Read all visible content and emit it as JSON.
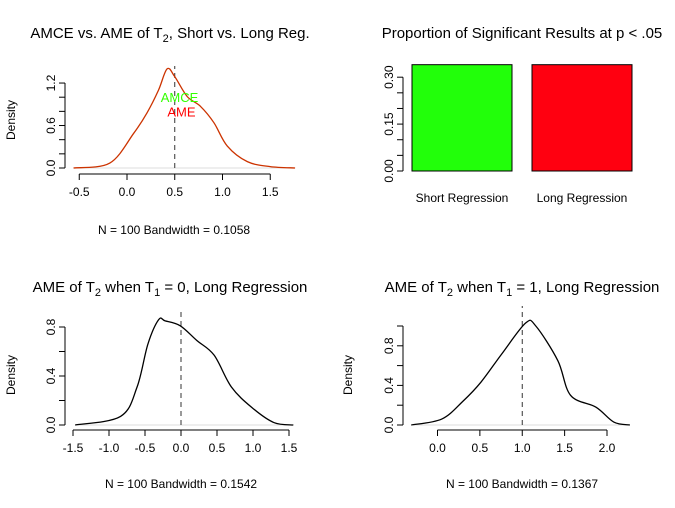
{
  "chart_data": [
    {
      "type": "line",
      "title": {
        "pre": "AMCE vs. AME of T",
        "sub": "2",
        "post": ", Short vs. Long Reg."
      },
      "xlabel": "N = 100   Bandwidth = 0.1058",
      "ylabel": "Density",
      "xticks": [
        -0.5,
        0.0,
        0.5,
        1.0,
        1.5
      ],
      "xtick_labels": [
        "-0.5",
        "0.0",
        "0.5",
        "1.0",
        "1.5"
      ],
      "yticks": [
        0,
        0.2,
        0.4,
        0.6,
        0.8,
        1.0,
        1.2
      ],
      "ytick_labels": [
        "0.0",
        "",
        "",
        "0.6",
        "",
        "",
        "1.2"
      ],
      "ref_line_x": 0.5,
      "curve_color": "#cc3300",
      "annotations": [
        {
          "text": "AMCE",
          "x": 0.55,
          "y": 1.0,
          "color": "#33ff00"
        },
        {
          "text": "AME",
          "x": 0.57,
          "y": 0.8,
          "color": "#ff0000"
        }
      ],
      "x": [
        -0.56,
        -0.18,
        0.07,
        0.21,
        0.33,
        0.42,
        0.5,
        0.63,
        0.77,
        0.91,
        1.05,
        1.26,
        1.5,
        1.76
      ],
      "y": [
        0,
        0.07,
        0.49,
        0.78,
        1.1,
        1.4,
        1.29,
        1.01,
        0.87,
        0.64,
        0.31,
        0.09,
        0.02,
        0
      ]
    },
    {
      "type": "bar",
      "title": {
        "pre": "Proportion of Significant Results at p < .05",
        "sub": "",
        "post": ""
      },
      "categories": [
        "Short Regression",
        "Long Regression"
      ],
      "values": [
        0.34,
        0.34
      ],
      "colors": [
        "#22ff0a",
        "#ff0010"
      ],
      "yticks": [
        0,
        0.05,
        0.1,
        0.15,
        0.2,
        0.25,
        0.3
      ],
      "ytick_labels": [
        "0.00",
        "",
        "",
        "0.15",
        "",
        "",
        "0.30"
      ]
    },
    {
      "type": "line",
      "title": {
        "pre": "AME of T",
        "sub": "2",
        "mid": " when T",
        "sub2": "1",
        "post": " = 0, Long Regression"
      },
      "xlabel": "N = 100   Bandwidth = 0.1542",
      "ylabel": "Density",
      "xticks": [
        -1.5,
        -1.0,
        -0.5,
        0.0,
        0.5,
        1.0,
        1.5
      ],
      "xtick_labels": [
        "-1.5",
        "-1.0",
        "-0.5",
        "0.0",
        "0.5",
        "1.0",
        "1.5"
      ],
      "yticks": [
        0,
        0.2,
        0.4,
        0.6,
        0.8
      ],
      "ytick_labels": [
        "0.0",
        "",
        "0.4",
        "",
        "0.8"
      ],
      "ref_line_x": 0.0,
      "curve_color": "#000000",
      "x": [
        -1.47,
        -0.84,
        -0.61,
        -0.46,
        -0.31,
        -0.22,
        -0.01,
        0.22,
        0.46,
        0.7,
        0.99,
        1.29,
        1.56
      ],
      "y": [
        0,
        0.07,
        0.31,
        0.66,
        0.86,
        0.85,
        0.81,
        0.69,
        0.57,
        0.31,
        0.14,
        0.02,
        0
      ]
    },
    {
      "type": "line",
      "title": {
        "pre": "AME of T",
        "sub": "2",
        "mid": " when T",
        "sub2": "1",
        "post": " = 1, Long Regression"
      },
      "xlabel": "N = 100   Bandwidth = 0.1367",
      "ylabel": "Density",
      "xticks": [
        0.0,
        0.5,
        1.0,
        1.5,
        2.0
      ],
      "xtick_labels": [
        "0.0",
        "0.5",
        "1.0",
        "1.5",
        "2.0"
      ],
      "yticks": [
        0,
        0.2,
        0.4,
        0.6,
        0.8,
        1.0
      ],
      "ytick_labels": [
        "0.0",
        "",
        "0.4",
        "",
        "0.8",
        ""
      ],
      "ref_line_x": 1.0,
      "curve_color": "#000000",
      "x": [
        -0.31,
        0.05,
        0.3,
        0.51,
        0.76,
        1.04,
        1.16,
        1.42,
        1.57,
        1.87,
        2.08,
        2.27
      ],
      "y": [
        0,
        0.06,
        0.24,
        0.43,
        0.72,
        1.03,
        1.0,
        0.65,
        0.3,
        0.18,
        0.03,
        0
      ]
    }
  ]
}
